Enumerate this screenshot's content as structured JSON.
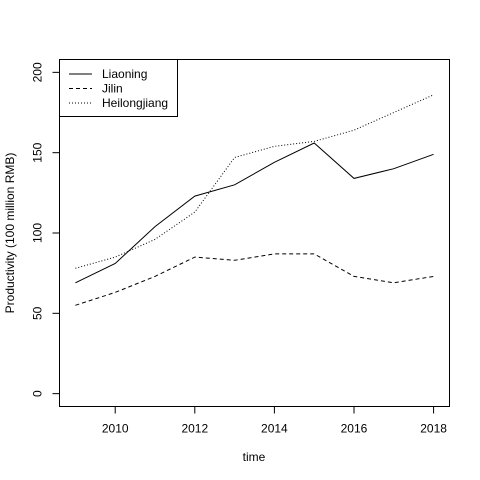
{
  "chart_data": {
    "type": "line",
    "xlabel": "time",
    "ylabel": "Productivity (100 million RMB)",
    "x": [
      2009,
      2010,
      2011,
      2012,
      2013,
      2014,
      2015,
      2016,
      2017,
      2018
    ],
    "xlim": [
      2008.6,
      2018.4
    ],
    "ylim": [
      -8,
      208
    ],
    "x_ticks": [
      2010,
      2012,
      2014,
      2016,
      2018
    ],
    "y_ticks": [
      0,
      50,
      100,
      150,
      200
    ],
    "grid": false,
    "legend_position": "top-left",
    "series": [
      {
        "name": "Liaoning",
        "line_style": "solid",
        "values": [
          69,
          81,
          104,
          123,
          130,
          144,
          156,
          134,
          140,
          149
        ]
      },
      {
        "name": "Jilin",
        "line_style": "dashed",
        "values": [
          55,
          63,
          73,
          85,
          83,
          87,
          87,
          73,
          69,
          73
        ]
      },
      {
        "name": "Heilongjiang",
        "line_style": "dotted",
        "values": [
          78,
          85,
          96,
          113,
          147,
          154,
          157,
          164,
          175,
          186
        ]
      }
    ]
  }
}
